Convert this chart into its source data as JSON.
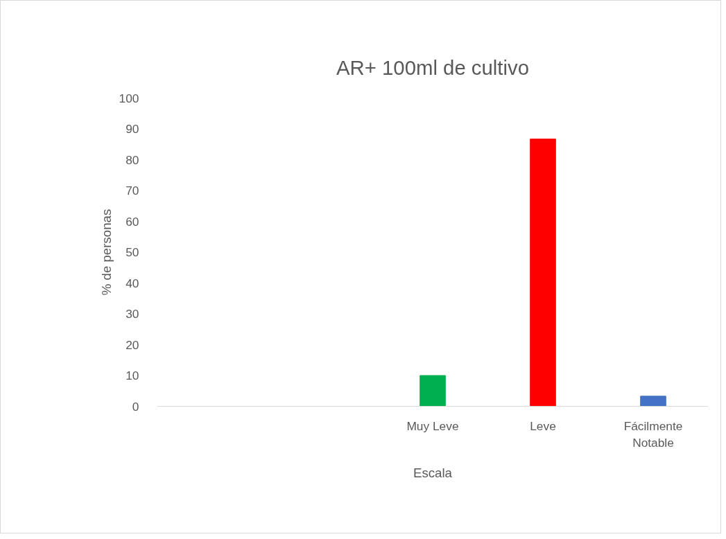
{
  "chart_data": {
    "type": "bar",
    "title": "AR+ 100ml de cultivo",
    "xlabel": "Escala",
    "ylabel": "% de personas",
    "categories": [
      null,
      null,
      "Muy Leve",
      "Leve",
      "Fácilmente Notable"
    ],
    "values": [
      null,
      null,
      10,
      86.7,
      3.3
    ],
    "colors": [
      "#00b050",
      "#00b050",
      "#00b050",
      "#ff0000",
      "#4472c4"
    ],
    "ylim": [
      0,
      100
    ],
    "yticks": [
      0,
      10,
      20,
      30,
      40,
      50,
      60,
      70,
      80,
      90,
      100
    ],
    "grid": false
  }
}
